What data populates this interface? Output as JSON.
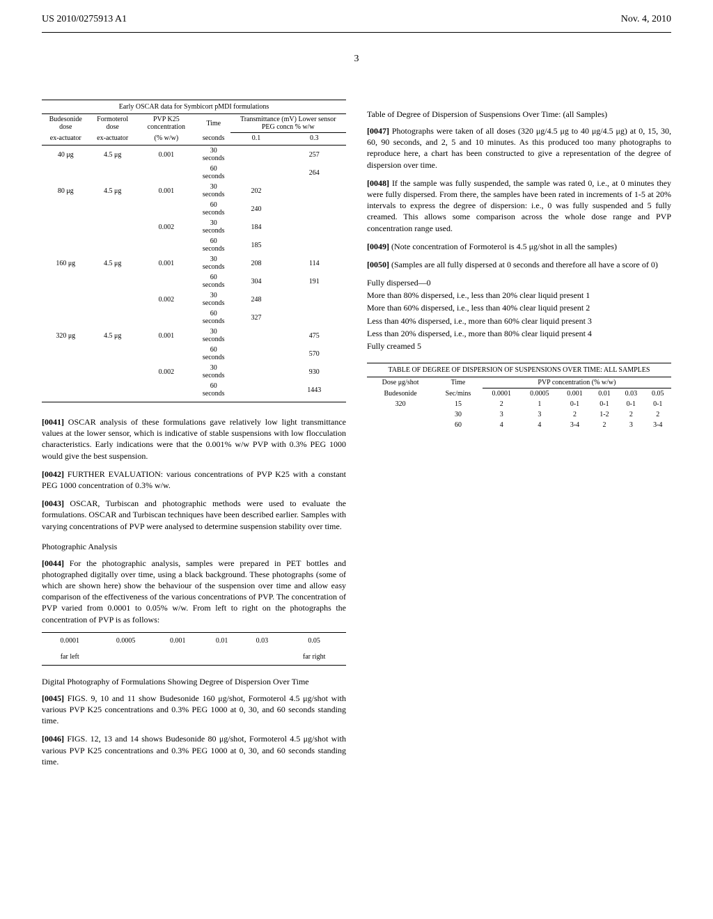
{
  "header": {
    "pubno": "US 2010/0275913 A1",
    "date": "Nov. 4, 2010",
    "page": "3"
  },
  "table1": {
    "caption": "Early OSCAR data for Symbicort pMDI formulations",
    "head": {
      "c1": "Budesonide dose",
      "c2": "Formoterol dose",
      "c3": "PVP K25 concentration",
      "c4": "Time",
      "c5_top": "Transmittance (mV) Lower sensor PEG concn % w/w",
      "sub_c1": "ex-actuator",
      "sub_c2": "ex-actuator",
      "sub_c3": "(% w/w)",
      "sub_c4": "seconds",
      "sub_c5": "0.1",
      "sub_c6": "0.3"
    },
    "rows": [
      [
        "40 μg",
        "4.5 μg",
        "0.001",
        "30 seconds",
        "",
        "257"
      ],
      [
        "",
        "",
        "",
        "60 seconds",
        "",
        "264"
      ],
      [
        "80 μg",
        "4.5 μg",
        "0.001",
        "30 seconds",
        "202",
        ""
      ],
      [
        "",
        "",
        "",
        "60 seconds",
        "240",
        ""
      ],
      [
        "",
        "",
        "0.002",
        "30 seconds",
        "184",
        ""
      ],
      [
        "",
        "",
        "",
        "60 seconds",
        "185",
        ""
      ],
      [
        "160 μg",
        "4.5 μg",
        "0.001",
        "30 seconds",
        "208",
        "114"
      ],
      [
        "",
        "",
        "",
        "60 seconds",
        "304",
        "191"
      ],
      [
        "",
        "",
        "0.002",
        "30 seconds",
        "248",
        ""
      ],
      [
        "",
        "",
        "",
        "60 seconds",
        "327",
        ""
      ],
      [
        "320 μg",
        "4.5 μg",
        "0.001",
        "30 seconds",
        "",
        "475"
      ],
      [
        "",
        "",
        "",
        "60 seconds",
        "",
        "570"
      ],
      [
        "",
        "",
        "0.002",
        "30 seconds",
        "",
        "930"
      ],
      [
        "",
        "",
        "",
        "60 seconds",
        "",
        "1443"
      ]
    ]
  },
  "left": {
    "p41_num": "[0041]",
    "p41": "OSCAR analysis of these formulations gave relatively low light transmittance values at the lower sensor, which is indicative of stable suspensions with low flocculation characteristics. Early indications were that the 0.001% w/w PVP with 0.3% PEG 1000 would give the best suspension.",
    "p42_num": "[0042]",
    "p42": "FURTHER EVALUATION: various concentrations of PVP K25 with a constant PEG 1000 concentration of 0.3% w/w.",
    "p43_num": "[0043]",
    "p43": "OSCAR, Turbiscan and photographic methods were used to evaluate the formulations. OSCAR and Turbiscan techniques have been described earlier. Samples with varying concentrations of PVP were analysed to determine suspension stability over time.",
    "photo_heading": "Photographic Analysis",
    "p44_num": "[0044]",
    "p44": "For the photographic analysis, samples were prepared in PET bottles and photographed digitally over time, using a black background. These photographs (some of which are shown here) show the behaviour of the suspension over time and allow easy comparison of the effectiveness of the various concentrations of PVP. The concentration of PVP varied from 0.0001 to 0.05% w/w. From left to right on the photographs the concentration of PVP is as follows:",
    "photo_labels": [
      {
        "v": "0.0001",
        "sub": "far left"
      },
      {
        "v": "0.0005",
        "sub": ""
      },
      {
        "v": "0.001",
        "sub": ""
      },
      {
        "v": "0.01",
        "sub": ""
      },
      {
        "v": "0.03",
        "sub": ""
      },
      {
        "v": "0.05",
        "sub": "far right"
      }
    ],
    "digital_heading": "Digital Photography of Formulations Showing Degree of Dispersion Over Time",
    "p45_num": "[0045]",
    "p45": "FIGS. 9, 10 and 11 show Budesonide 160 μg/shot, Formoterol 4.5 μg/shot with various PVP K25 concentrations and 0.3% PEG 1000 at 0, 30, and 60 seconds standing time.",
    "p46_num": "[0046]",
    "p46": "FIGS. 12, 13 and 14 shows Budesonide 80 μg/shot, Formoterol 4.5 μg/shot with various PVP K25 concentrations and 0.3% PEG 1000 at 0, 30, and 60 seconds standing time."
  },
  "right": {
    "top_heading": "Table of Degree of Dispersion of Suspensions Over Time: (all Samples)",
    "p47_num": "[0047]",
    "p47": "Photographs were taken of all doses (320 μg/4.5 μg to 40 μg/4.5 μg) at 0, 15, 30, 60, 90 seconds, and 2, 5 and 10 minutes. As this produced too many photographs to reproduce here, a chart has been constructed to give a representation of the degree of dispersion over time.",
    "p48_num": "[0048]",
    "p48": "If the sample was fully suspended, the sample was rated 0, i.e., at 0 minutes they were fully dispersed. From there, the samples have been rated in increments of 1-5 at 20% intervals to express the degree of dispersion: i.e., 0 was fully suspended and 5 fully creamed. This allows some comparison across the whole dose range and PVP concentration range used.",
    "p49_num": "[0049]",
    "p49": "(Note concentration of Formoterol is 4.5 μg/shot in all the samples)",
    "p50_num": "[0050]",
    "p50": "(Samples are all fully dispersed at 0 seconds and therefore all have a score of 0)",
    "scale": {
      "s0": "Fully dispersed—0",
      "s1": "More than 80% dispersed, i.e., less than 20% clear liquid present 1",
      "s2": "More than 60% dispersed, i.e., less than 40% clear liquid present 2",
      "s3": "Less than 40% dispersed, i.e., more than 60% clear liquid present 3",
      "s4": "Less than 20% dispersed, i.e., more than 80% clear liquid present 4",
      "s5": "Fully creamed 5"
    }
  },
  "table2": {
    "caption": "TABLE OF DEGREE OF DISPERSION OF SUSPENSIONS OVER TIME: ALL SAMPLES",
    "head": {
      "dose": "Dose μg/shot",
      "time": "Time",
      "group": "PVP concentration (% w/w)",
      "sub_left": "Budesonide",
      "sub_time": "Sec/mins",
      "pvp": [
        "0.0001",
        "0.0005",
        "0.001",
        "0.01",
        "0.03",
        "0.05"
      ]
    },
    "rows": [
      [
        "320",
        "15",
        "2",
        "1",
        "0-1",
        "0-1",
        "0-1",
        "0-1"
      ],
      [
        "",
        "30",
        "3",
        "3",
        "2",
        "1-2",
        "2",
        "2"
      ],
      [
        "",
        "60",
        "4",
        "4",
        "3-4",
        "2",
        "3",
        "3-4"
      ]
    ]
  }
}
